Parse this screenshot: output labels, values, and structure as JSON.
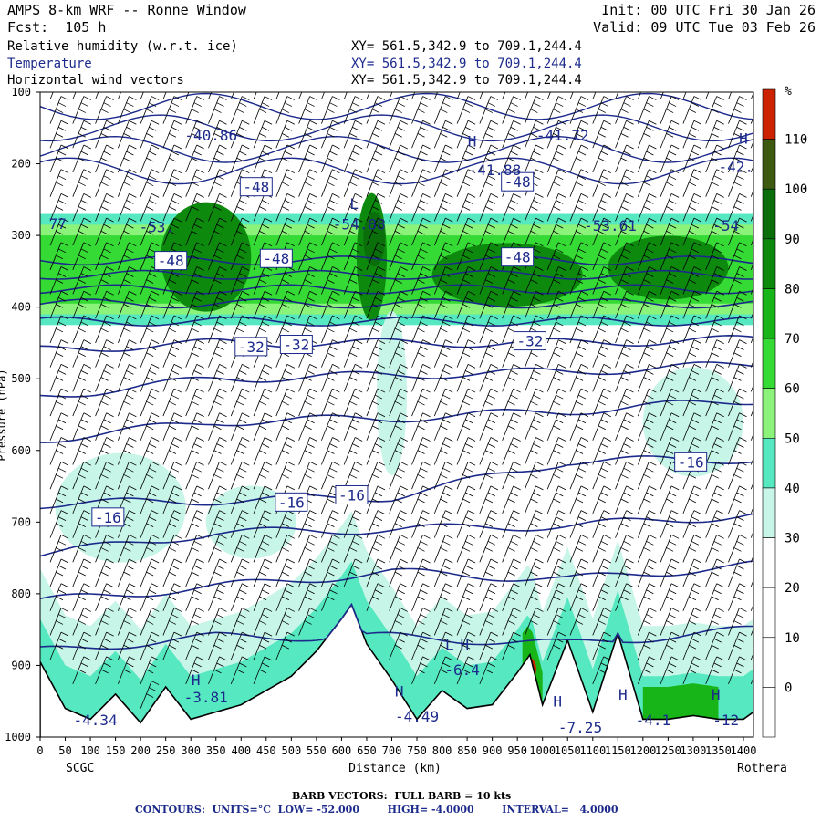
{
  "header": {
    "title": "AMPS 8-km WRF -- Ronne Window",
    "forecast": "Fcst:  105 h",
    "init": "Init: 00 UTC Fri 30 Jan 26",
    "valid": "Valid: 09 UTC Tue 03 Feb 26",
    "fields": [
      {
        "name": "Relative humidity (w.r.t. ice)",
        "xy": "XY= 561.5,342.9 to 709.1,244.4"
      },
      {
        "name": "Temperature",
        "xy": "XY= 561.5,342.9 to 709.1,244.4"
      },
      {
        "name": "Horizontal wind vectors",
        "xy": "XY= 561.5,342.9 to 709.1,244.4"
      }
    ]
  },
  "footer": {
    "barb_note": "BARB VECTORS:  FULL BARB = 10 kts",
    "contour_note": "CONTOURS:  UNITS=°C  LOW= -52.000        HIGH= -4.0000        INTERVAL=   4.0000"
  },
  "colors": {
    "contour": "#1c2a8c",
    "ground": "#ffffff",
    "rh_scale": [
      "#ffffff",
      "#ffffff",
      "#ffffff",
      "#ffffff",
      "#c7f5e8",
      "#56e8c0",
      "#8bf27a",
      "#35da35",
      "#17b517",
      "#0d8a0d",
      "#0a6e0a",
      "#3d5a10",
      "#cc2200"
    ]
  },
  "chart_data": {
    "type": "cross-section",
    "xlabel": "Distance (km)",
    "ylabel": "Pressure (hPa)",
    "xlim": [
      0,
      1420
    ],
    "ylim": [
      1000,
      100
    ],
    "x_ticks": [
      0,
      50,
      100,
      150,
      200,
      250,
      300,
      350,
      400,
      450,
      500,
      550,
      600,
      650,
      700,
      750,
      800,
      850,
      900,
      950,
      1000,
      1050,
      1100,
      1150,
      1200,
      1250,
      1300,
      1350,
      1400
    ],
    "y_ticks": [
      100,
      200,
      300,
      400,
      500,
      600,
      700,
      800,
      900,
      1000
    ],
    "endpoint_labels": {
      "left": "SCGC",
      "right": "Rothera"
    },
    "rh_colorbar": {
      "unit": "%",
      "levels": [
        -10,
        0,
        10,
        20,
        30,
        40,
        50,
        60,
        70,
        80,
        90,
        100,
        110,
        120
      ],
      "tick_labels": [
        "",
        "0",
        "10",
        "20",
        "30",
        "40",
        "50",
        "60",
        "70",
        "80",
        "90",
        "100",
        "110",
        ""
      ]
    },
    "temperature_contour_labels": [
      {
        "text": "-48",
        "x": 430,
        "p": 232,
        "boxed": true
      },
      {
        "text": "-48",
        "x": 950,
        "p": 225,
        "boxed": true
      },
      {
        "text": "-48",
        "x": 260,
        "p": 335,
        "boxed": true
      },
      {
        "text": "-48",
        "x": 470,
        "p": 332,
        "boxed": true
      },
      {
        "text": "-48",
        "x": 950,
        "p": 330,
        "boxed": true
      },
      {
        "text": "-32",
        "x": 420,
        "p": 455,
        "boxed": true
      },
      {
        "text": "-32",
        "x": 510,
        "p": 452,
        "boxed": true
      },
      {
        "text": "-32",
        "x": 975,
        "p": 447,
        "boxed": true
      },
      {
        "text": "-16",
        "x": 135,
        "p": 693,
        "boxed": true
      },
      {
        "text": "-16",
        "x": 500,
        "p": 672,
        "boxed": true
      },
      {
        "text": "-16",
        "x": 620,
        "p": 662,
        "boxed": true
      },
      {
        "text": "-16",
        "x": 1295,
        "p": 616,
        "boxed": true
      },
      {
        "text": "-40.86",
        "x": 340,
        "p": 160,
        "boxed": false
      },
      {
        "text": "-41.88",
        "x": 905,
        "p": 208,
        "boxed": false
      },
      {
        "text": "-41.72",
        "x": 1040,
        "p": 160,
        "boxed": false
      },
      {
        "text": "-42.",
        "x": 1385,
        "p": 204,
        "boxed": false
      },
      {
        "text": "-53.",
        "x": 232,
        "p": 288,
        "boxed": false
      },
      {
        "text": "-54.88",
        "x": 635,
        "p": 284,
        "boxed": false
      },
      {
        "text": "-53.61",
        "x": 1135,
        "p": 286,
        "boxed": false
      },
      {
        "text": "-54",
        "x": 1365,
        "p": 286,
        "boxed": false
      },
      {
        "text": "77",
        "x": 35,
        "p": 283,
        "boxed": false
      },
      {
        "text": "-4.34",
        "x": 110,
        "p": 976,
        "boxed": false
      },
      {
        "text": "-3.81",
        "x": 330,
        "p": 944,
        "boxed": false
      },
      {
        "text": "-4.49",
        "x": 750,
        "p": 971,
        "boxed": false
      },
      {
        "text": "-6.4",
        "x": 840,
        "p": 906,
        "boxed": false
      },
      {
        "text": "-7.25",
        "x": 1075,
        "p": 986,
        "boxed": false
      },
      {
        "text": "-4.1",
        "x": 1220,
        "p": 976,
        "boxed": false
      },
      {
        "text": "-12",
        "x": 1365,
        "p": 976,
        "boxed": false
      }
    ],
    "extrema_markers": [
      {
        "text": "H",
        "x": 860,
        "p": 168
      },
      {
        "text": "H",
        "x": 1400,
        "p": 164
      },
      {
        "text": "L",
        "x": 625,
        "p": 255
      },
      {
        "text": "H",
        "x": 310,
        "p": 920
      },
      {
        "text": "L",
        "x": 815,
        "p": 871
      },
      {
        "text": "H",
        "x": 845,
        "p": 871
      },
      {
        "text": "H",
        "x": 715,
        "p": 936
      },
      {
        "text": "H",
        "x": 1030,
        "p": 950
      },
      {
        "text": "H",
        "x": 1160,
        "p": 940
      },
      {
        "text": "H",
        "x": 1345,
        "p": 940
      }
    ],
    "isotherm_pressures_at_km": {
      "x": [
        0,
        350,
        700,
        1050,
        1420
      ],
      "lines": [
        [
          335,
          335,
          335,
          335,
          335
        ],
        [
          355,
          355,
          355,
          355,
          355
        ],
        [
          375,
          375,
          375,
          375,
          375
        ],
        [
          395,
          395,
          395,
          395,
          395
        ],
        [
          420,
          420,
          420,
          420,
          420
        ],
        [
          460,
          450,
          450,
          450,
          445
        ],
        [
          525,
          500,
          495,
          490,
          480
        ],
        [
          585,
          560,
          555,
          545,
          530
        ],
        [
          675,
          670,
          665,
          615,
          612
        ],
        [
          745,
          715,
          710,
          705,
          690
        ],
        [
          810,
          790,
          770,
          780,
          760
        ],
        [
          880,
          860,
          860,
          870,
          850
        ]
      ]
    },
    "terrain_surface_hpa": {
      "x": [
        0,
        50,
        100,
        150,
        200,
        250,
        300,
        350,
        400,
        450,
        500,
        550,
        600,
        620,
        650,
        700,
        750,
        800,
        850,
        900,
        950,
        975,
        1000,
        1050,
        1100,
        1150,
        1200,
        1250,
        1300,
        1350,
        1400,
        1420
      ],
      "p": [
        895,
        960,
        975,
        940,
        980,
        930,
        975,
        965,
        955,
        935,
        915,
        880,
        835,
        815,
        870,
        920,
        975,
        935,
        960,
        955,
        910,
        885,
        955,
        865,
        965,
        855,
        975,
        975,
        970,
        975,
        975,
        965
      ]
    }
  }
}
